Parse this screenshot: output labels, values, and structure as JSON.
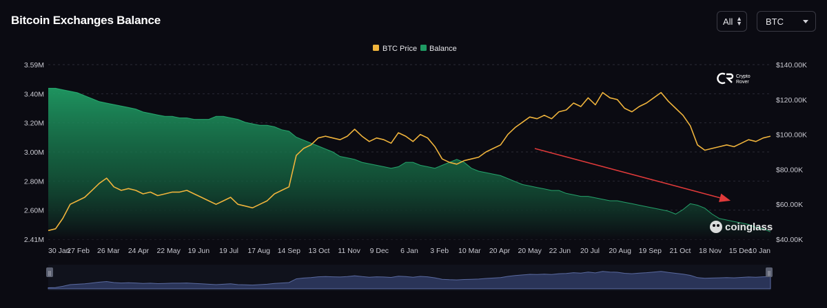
{
  "header": {
    "title": "Bitcoin Exchanges Balance",
    "range_select": "All",
    "asset_select": "BTC"
  },
  "colors": {
    "background": "#0b0b12",
    "btc_price": "#f0b43c",
    "balance": "#1f9a63",
    "trend_arrow": "#e03a3a",
    "navigator_fill": "#2a3458"
  },
  "watermarks": {
    "crypto_rover": [
      "Crypto",
      "Rover"
    ],
    "coinglass": "coinglass"
  },
  "chart_data": {
    "type": "area",
    "legend_position": "top-center",
    "grid": true,
    "x_labels": [
      "30 Jan",
      "27 Feb",
      "26 Mar",
      "24 Apr",
      "22 May",
      "19 Jun",
      "19 Jul",
      "17 Aug",
      "14 Sep",
      "13 Oct",
      "11 Nov",
      "9 Dec",
      "6 Jan",
      "3 Feb",
      "10 Mar",
      "20 Apr",
      "20 May",
      "22 Jun",
      "20 Jul",
      "20 Aug",
      "19 Sep",
      "21 Oct",
      "18 Nov",
      "15 Dec",
      "10 Jan"
    ],
    "y_left": {
      "ticks": [
        "3.59M",
        "3.40M",
        "3.20M",
        "3.00M",
        "2.80M",
        "2.60M",
        "2.41M"
      ],
      "range": [
        2.41,
        3.59
      ],
      "unit": "M"
    },
    "y_right": {
      "ticks": [
        "$140.00K",
        "$120.00K",
        "$100.00K",
        "$80.00K",
        "$60.00K",
        "$40.00K"
      ],
      "range": [
        40,
        140
      ],
      "unit": "K"
    },
    "series": [
      {
        "name": "BTC Price",
        "axis": "right",
        "style": "line",
        "values": [
          45,
          46,
          52,
          60,
          62,
          64,
          68,
          72,
          75,
          70,
          68,
          69,
          68,
          66,
          67,
          65,
          66,
          67,
          67,
          68,
          66,
          64,
          62,
          60,
          62,
          64,
          60,
          59,
          58,
          60,
          62,
          66,
          68,
          70,
          88,
          92,
          94,
          98,
          99,
          98,
          97,
          99,
          103,
          99,
          96,
          98,
          97,
          95,
          101,
          99,
          96,
          100,
          98,
          93,
          86,
          84,
          83,
          85,
          86,
          87,
          90,
          92,
          94,
          100,
          104,
          107,
          110,
          109,
          111,
          109,
          113,
          114,
          118,
          116,
          121,
          117,
          124,
          121,
          120,
          115,
          113,
          116,
          118,
          121,
          124,
          119,
          115,
          111,
          105,
          94,
          91,
          92,
          93,
          94,
          93,
          95,
          97,
          96,
          98,
          99
        ]
      },
      {
        "name": "Balance",
        "axis": "left",
        "style": "area",
        "values": [
          3.43,
          3.43,
          3.42,
          3.41,
          3.4,
          3.38,
          3.36,
          3.34,
          3.33,
          3.32,
          3.31,
          3.3,
          3.29,
          3.27,
          3.26,
          3.25,
          3.24,
          3.24,
          3.23,
          3.23,
          3.22,
          3.22,
          3.22,
          3.24,
          3.24,
          3.23,
          3.22,
          3.2,
          3.19,
          3.18,
          3.18,
          3.17,
          3.15,
          3.14,
          3.1,
          3.08,
          3.06,
          3.04,
          3.02,
          3,
          2.97,
          2.96,
          2.95,
          2.93,
          2.92,
          2.91,
          2.9,
          2.89,
          2.9,
          2.93,
          2.93,
          2.91,
          2.9,
          2.89,
          2.91,
          2.93,
          2.95,
          2.93,
          2.89,
          2.87,
          2.86,
          2.85,
          2.84,
          2.82,
          2.8,
          2.78,
          2.77,
          2.76,
          2.75,
          2.74,
          2.74,
          2.72,
          2.71,
          2.7,
          2.7,
          2.69,
          2.68,
          2.67,
          2.67,
          2.66,
          2.65,
          2.64,
          2.63,
          2.62,
          2.61,
          2.6,
          2.58,
          2.61,
          2.65,
          2.64,
          2.62,
          2.58,
          2.55,
          2.54,
          2.53,
          2.52,
          2.51,
          2.49,
          2.48,
          2.46
        ]
      }
    ]
  }
}
